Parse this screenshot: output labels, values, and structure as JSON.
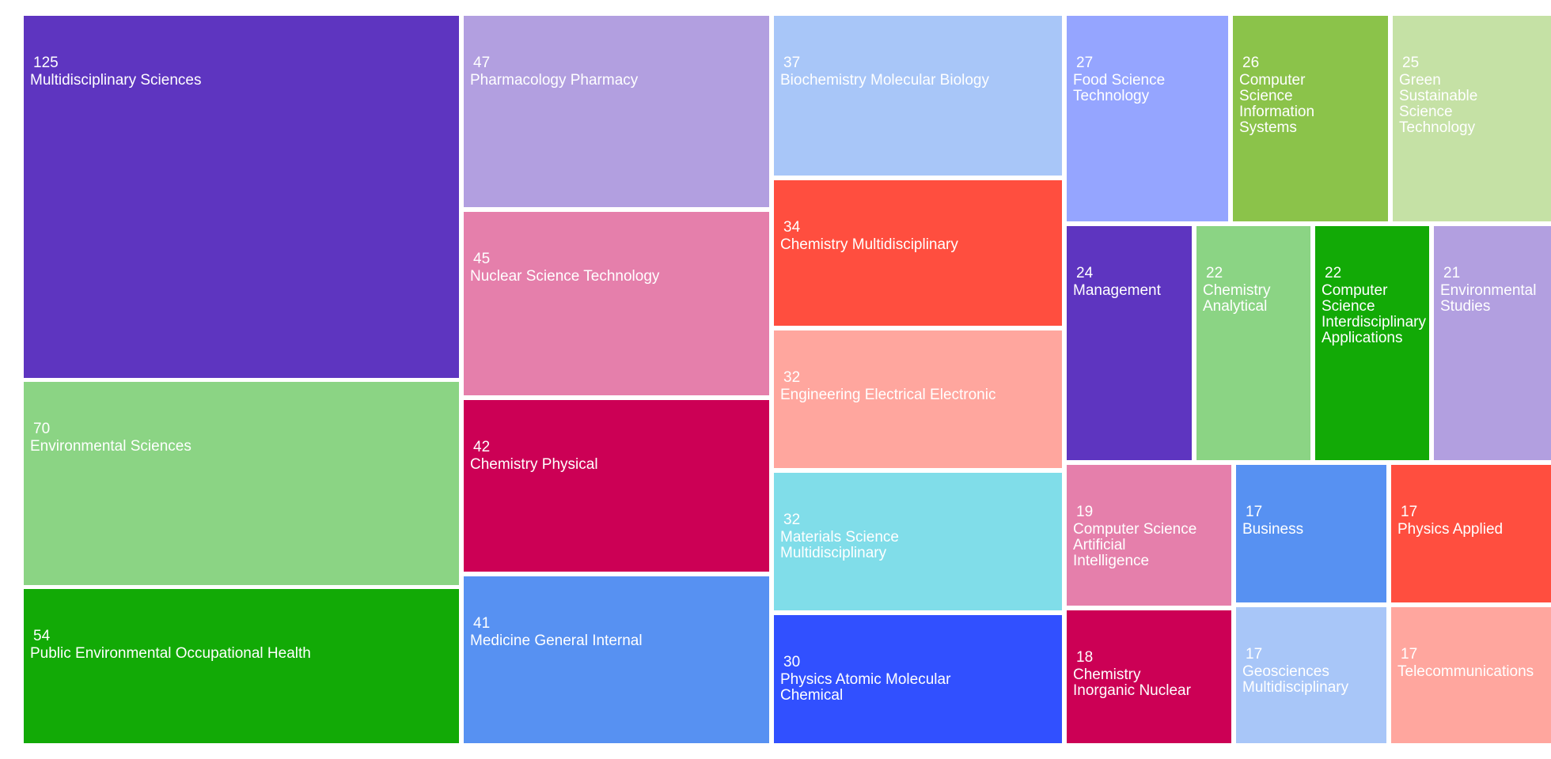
{
  "chart_data": {
    "type": "treemap",
    "items": [
      {
        "label": "Multidisciplinary Sciences",
        "value": 125,
        "color": "#5e35c0"
      },
      {
        "label": "Environmental Sciences",
        "value": 70,
        "color": "#8bd484"
      },
      {
        "label": "Public Environmental Occupational Health",
        "value": 54,
        "color": "#12aa06"
      },
      {
        "label": "Pharmacology Pharmacy",
        "value": 47,
        "color": "#b29fe0"
      },
      {
        "label": "Nuclear Science Technology",
        "value": 45,
        "color": "#e57fab"
      },
      {
        "label": "Chemistry Physical",
        "value": 42,
        "color": "#cc0055"
      },
      {
        "label": "Medicine General Internal",
        "value": 41,
        "color": "#5791f2"
      },
      {
        "label": "Biochemistry Molecular Biology",
        "value": 37,
        "color": "#a8c6f8"
      },
      {
        "label": "Chemistry Multidisciplinary",
        "value": 34,
        "color": "#ff4e3f"
      },
      {
        "label": "Engineering Electrical Electronic",
        "value": 32,
        "color": "#ffa69e"
      },
      {
        "label": "Materials Science\nMultidisciplinary",
        "value": 32,
        "color": "#80dde9"
      },
      {
        "label": "Physics Atomic Molecular\nChemical",
        "value": 30,
        "color": "#3150ff"
      },
      {
        "label": "Food Science\nTechnology",
        "value": 27,
        "color": "#95a5ff"
      },
      {
        "label": "Computer\nScience\nInformation\nSystems",
        "value": 26,
        "color": "#8bc34a"
      },
      {
        "label": "Green\nSustainable\nScience\nTechnology",
        "value": 25,
        "color": "#c5e1a5"
      },
      {
        "label": "Management",
        "value": 24,
        "color": "#5e35c0"
      },
      {
        "label": "Chemistry\nAnalytical",
        "value": 22,
        "color": "#8bd484"
      },
      {
        "label": "Computer\nScience\nInterdisciplinary\nApplications",
        "value": 22,
        "color": "#12aa06"
      },
      {
        "label": "Environmental\nStudies",
        "value": 21,
        "color": "#b29fe0"
      },
      {
        "label": "Computer Science\nArtificial\nIntelligence",
        "value": 19,
        "color": "#e57fab"
      },
      {
        "label": "Chemistry\nInorganic Nuclear",
        "value": 18,
        "color": "#cc0055"
      },
      {
        "label": "Business",
        "value": 17,
        "color": "#5791f2"
      },
      {
        "label": "Geosciences\nMultidisciplinary",
        "value": 17,
        "color": "#a8c6f8"
      },
      {
        "label": "Physics Applied",
        "value": 17,
        "color": "#ff4e3f"
      },
      {
        "label": "Telecommunications",
        "value": 17,
        "color": "#ffa69e"
      }
    ]
  }
}
